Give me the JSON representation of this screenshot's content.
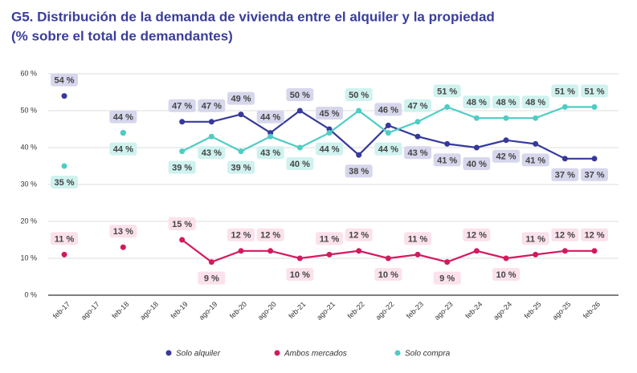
{
  "chart_data": {
    "type": "line",
    "title": "G5. Distribución de la demanda de vivienda entre el alquiler y la propiedad",
    "subtitle": "(% sobre el total de demandantes)",
    "categories": [
      "feb-17",
      "ago-17",
      "feb-18",
      "ago-18",
      "feb-19",
      "ago-19",
      "feb-20",
      "ago-20",
      "feb-21",
      "ago-21",
      "feb-22",
      "ago-22",
      "feb-23",
      "ago-23",
      "feb-24",
      "ago-24",
      "feb-25",
      "ago-25",
      "feb-26"
    ],
    "ylim": [
      0,
      60
    ],
    "yticks": [
      {
        "value": 0,
        "label": "0 %"
      },
      {
        "value": 10,
        "label": "10 %"
      },
      {
        "value": 20,
        "label": "20 %"
      },
      {
        "value": 30,
        "label": "30 %"
      },
      {
        "value": 40,
        "label": "40 %"
      },
      {
        "value": 50,
        "label": "50 %"
      },
      {
        "value": 60,
        "label": "60 %"
      }
    ],
    "series": [
      {
        "name": "Solo alquiler",
        "color": "#36399a",
        "values": [
          54,
          null,
          44,
          null,
          47,
          47,
          49,
          44,
          50,
          45,
          38,
          46,
          43,
          41,
          40,
          42,
          41,
          37,
          37
        ],
        "value_labels": [
          "54 %",
          null,
          "44 %",
          null,
          "47 %",
          "47 %",
          "49 %",
          "44 %",
          "50 %",
          "45 %",
          "38 %",
          "46 %",
          "43 %",
          "41 %",
          "40 %",
          "42 %",
          "41 %",
          "37 %",
          "37 %"
        ]
      },
      {
        "name": "Ambos mercados",
        "color": "#d4195f",
        "values": [
          11,
          null,
          13,
          null,
          15,
          9,
          12,
          12,
          10,
          11,
          12,
          10,
          11,
          9,
          12,
          10,
          11,
          12,
          12
        ],
        "value_labels": [
          "11 %",
          null,
          "13 %",
          null,
          "15 %",
          "9 %",
          "12 %",
          "12 %",
          "10 %",
          "11 %",
          "12 %",
          "10 %",
          "11 %",
          "9 %",
          "12 %",
          "10 %",
          "11 %",
          "12 %",
          "12 %"
        ]
      },
      {
        "name": "Solo compra",
        "color": "#4ecdc4",
        "values": [
          35,
          null,
          44,
          null,
          39,
          43,
          39,
          43,
          40,
          44,
          50,
          44,
          47,
          51,
          48,
          48,
          48,
          51,
          51
        ],
        "value_labels": [
          "35 %",
          null,
          "44 %",
          null,
          "39 %",
          "43 %",
          "39 %",
          "43 %",
          "40 %",
          "44 %",
          "50 %",
          "44 %",
          "47 %",
          "51 %",
          "48 %",
          "48 %",
          "48 %",
          "51 %",
          "51 %"
        ]
      }
    ]
  }
}
